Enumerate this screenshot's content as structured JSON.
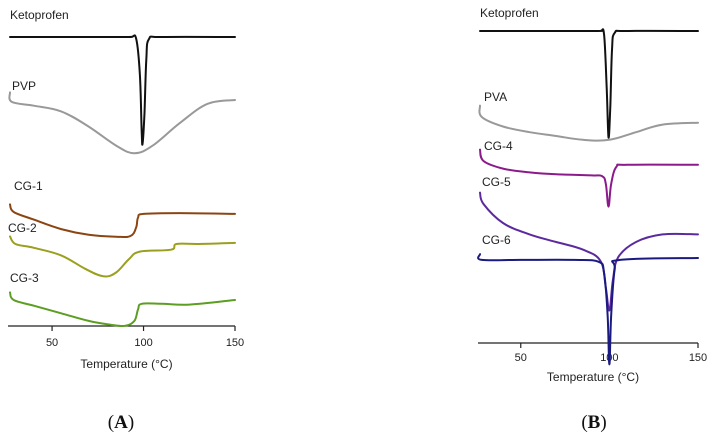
{
  "chart_data": [
    {
      "panel": "A",
      "panel_label": "(A)",
      "panel_label_letter": "A",
      "type": "line",
      "chart_kind": "DSC thermogram",
      "xlabel": "Temperature (°C)",
      "ylabel": "",
      "xlim": [
        27,
        150
      ],
      "xticks": [
        50,
        100,
        150
      ],
      "xtick_labels": [
        "50",
        "100",
        "150"
      ],
      "series": [
        {
          "name": "Ketoprofen",
          "color": "#111111",
          "points": [
            [
              27,
              0
            ],
            [
              85,
              0
            ],
            [
              93,
              0
            ],
            [
              96,
              -0.5
            ],
            [
              98,
              -10
            ],
            [
              99,
              -25
            ],
            [
              99.5,
              -28
            ],
            [
              100.5,
              -20
            ],
            [
              101.5,
              -6
            ],
            [
              103,
              -0.5
            ],
            [
              110,
              0
            ],
            [
              150,
              0
            ]
          ]
        },
        {
          "name": "PVP",
          "color": "#999999",
          "points": [
            [
              27,
              2
            ],
            [
              28,
              -0.5
            ],
            [
              40,
              -1.5
            ],
            [
              55,
              -3
            ],
            [
              70,
              -7
            ],
            [
              85,
              -12
            ],
            [
              95,
              -14
            ],
            [
              105,
              -12
            ],
            [
              120,
              -6
            ],
            [
              135,
              -1
            ],
            [
              150,
              0
            ]
          ]
        },
        {
          "name": "CG-1",
          "color": "#8b4513",
          "points": [
            [
              27,
              2
            ],
            [
              29,
              0
            ],
            [
              40,
              -2
            ],
            [
              55,
              -4.5
            ],
            [
              70,
              -6
            ],
            [
              85,
              -6.5
            ],
            [
              93,
              -6.3
            ],
            [
              96,
              -4
            ],
            [
              97,
              -1.5
            ],
            [
              100,
              -0.5
            ],
            [
              120,
              -0.3
            ],
            [
              150,
              -0.5
            ]
          ]
        },
        {
          "name": "CG-2",
          "color": "#9aa01e",
          "points": [
            [
              27,
              2
            ],
            [
              30,
              0
            ],
            [
              40,
              -1
            ],
            [
              55,
              -3
            ],
            [
              68,
              -6.5
            ],
            [
              78,
              -8.5
            ],
            [
              85,
              -7.5
            ],
            [
              92,
              -4
            ],
            [
              98,
              -2
            ],
            [
              115,
              -1.5
            ],
            [
              118,
              0
            ],
            [
              130,
              0
            ],
            [
              150,
              0.3
            ]
          ]
        },
        {
          "name": "CG-3",
          "color": "#5c9e22",
          "points": [
            [
              27,
              2
            ],
            [
              29,
              0
            ],
            [
              40,
              -1.5
            ],
            [
              55,
              -3.5
            ],
            [
              70,
              -5.5
            ],
            [
              82,
              -6.5
            ],
            [
              90,
              -6.8
            ],
            [
              95,
              -5.5
            ],
            [
              97,
              -2.5
            ],
            [
              99,
              -1
            ],
            [
              110,
              -1
            ],
            [
              125,
              -1.2
            ],
            [
              150,
              0
            ]
          ]
        }
      ]
    },
    {
      "panel": "B",
      "panel_label": "(B)",
      "panel_label_letter": "B",
      "type": "line",
      "chart_kind": "DSC thermogram",
      "xlabel": "Temperature (°C)",
      "ylabel": "",
      "xlim": [
        27,
        150
      ],
      "xticks": [
        50,
        100,
        150
      ],
      "xtick_labels": [
        "50",
        "100",
        "150"
      ],
      "series": [
        {
          "name": "Ketoprofen",
          "color": "#111111",
          "points": [
            [
              27,
              0
            ],
            [
              90,
              0
            ],
            [
              95,
              0
            ],
            [
              97,
              -1
            ],
            [
              98.5,
              -15
            ],
            [
              99.5,
              -28
            ],
            [
              100.5,
              -20
            ],
            [
              101.5,
              -5
            ],
            [
              103,
              -0.5
            ],
            [
              110,
              0
            ],
            [
              150,
              0
            ]
          ]
        },
        {
          "name": "PVA",
          "color": "#999999",
          "points": [
            [
              27,
              3
            ],
            [
              28,
              0
            ],
            [
              40,
              -2.5
            ],
            [
              55,
              -4
            ],
            [
              70,
              -5
            ],
            [
              85,
              -6
            ],
            [
              100,
              -6
            ],
            [
              115,
              -4
            ],
            [
              130,
              -2
            ],
            [
              150,
              -1.5
            ]
          ]
        },
        {
          "name": "CG-4",
          "color": "#8b1a8b",
          "points": [
            [
              27,
              3
            ],
            [
              29,
              0
            ],
            [
              40,
              -2
            ],
            [
              55,
              -3
            ],
            [
              70,
              -3.5
            ],
            [
              90,
              -3.8
            ],
            [
              96,
              -4
            ],
            [
              98,
              -6
            ],
            [
              99.5,
              -12
            ],
            [
              101,
              -6
            ],
            [
              104,
              -1.5
            ],
            [
              110,
              -1
            ],
            [
              150,
              -1
            ]
          ]
        },
        {
          "name": "CG-5",
          "color": "#5b2a9e",
          "points": [
            [
              27,
              3
            ],
            [
              29,
              0
            ],
            [
              40,
              -5
            ],
            [
              55,
              -8
            ],
            [
              70,
              -10
            ],
            [
              85,
              -12
            ],
            [
              95,
              -15
            ],
            [
              98,
              -22
            ],
            [
              100,
              -28
            ],
            [
              102,
              -20
            ],
            [
              105,
              -14
            ],
            [
              115,
              -10
            ],
            [
              130,
              -8
            ],
            [
              150,
              -8
            ]
          ]
        },
        {
          "name": "CG-6",
          "color": "#1a1a80",
          "points": [
            [
              27,
              1
            ],
            [
              28,
              -0.5
            ],
            [
              50,
              -0.5
            ],
            [
              80,
              -0.5
            ],
            [
              94,
              -1
            ],
            [
              97,
              -4
            ],
            [
              99,
              -15
            ],
            [
              100,
              -28
            ],
            [
              101,
              -15
            ],
            [
              103,
              -3
            ],
            [
              106,
              -0.5
            ],
            [
              150,
              0
            ]
          ]
        }
      ]
    }
  ]
}
